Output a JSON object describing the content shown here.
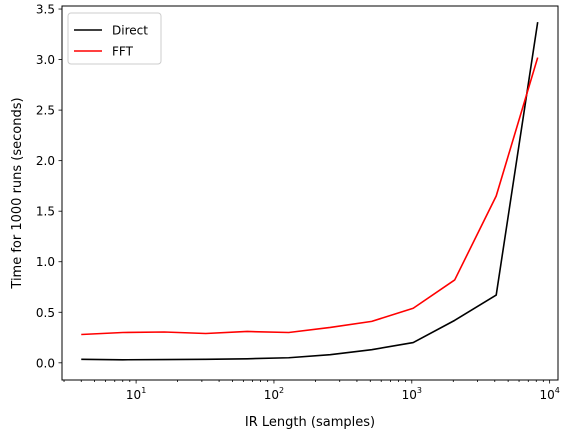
{
  "chart_data": {
    "type": "line",
    "title": "",
    "xlabel": "IR Length (samples)",
    "ylabel": "Time for 1000 runs (seconds)",
    "xscale": "log",
    "xlim": [
      2.9,
      11500
    ],
    "ylim": [
      -0.17,
      3.53
    ],
    "grid": false,
    "legend_position": "top-left",
    "x": [
      4,
      8,
      16,
      32,
      64,
      128,
      256,
      512,
      1024,
      2048,
      4096,
      8192
    ],
    "series": [
      {
        "name": "Direct",
        "color": "#000000",
        "values": [
          0.035,
          0.03,
          0.032,
          0.035,
          0.04,
          0.05,
          0.08,
          0.13,
          0.2,
          0.42,
          0.67,
          3.37
        ]
      },
      {
        "name": "FFT",
        "color": "#ff0000",
        "values": [
          0.28,
          0.3,
          0.305,
          0.29,
          0.31,
          0.3,
          0.35,
          0.41,
          0.54,
          0.82,
          1.65,
          3.02
        ]
      }
    ],
    "x_ticks": [
      {
        "value": 10,
        "base": "10",
        "exp": "1"
      },
      {
        "value": 100,
        "base": "10",
        "exp": "2"
      },
      {
        "value": 1000,
        "base": "10",
        "exp": "3"
      },
      {
        "value": 10000,
        "base": "10",
        "exp": "4"
      }
    ],
    "y_ticks": [
      {
        "value": 0.0,
        "label": "0.0"
      },
      {
        "value": 0.5,
        "label": "0.5"
      },
      {
        "value": 1.0,
        "label": "1.0"
      },
      {
        "value": 1.5,
        "label": "1.5"
      },
      {
        "value": 2.0,
        "label": "2.0"
      },
      {
        "value": 2.5,
        "label": "2.5"
      },
      {
        "value": 3.0,
        "label": "3.0"
      },
      {
        "value": 3.5,
        "label": "3.5"
      }
    ]
  }
}
